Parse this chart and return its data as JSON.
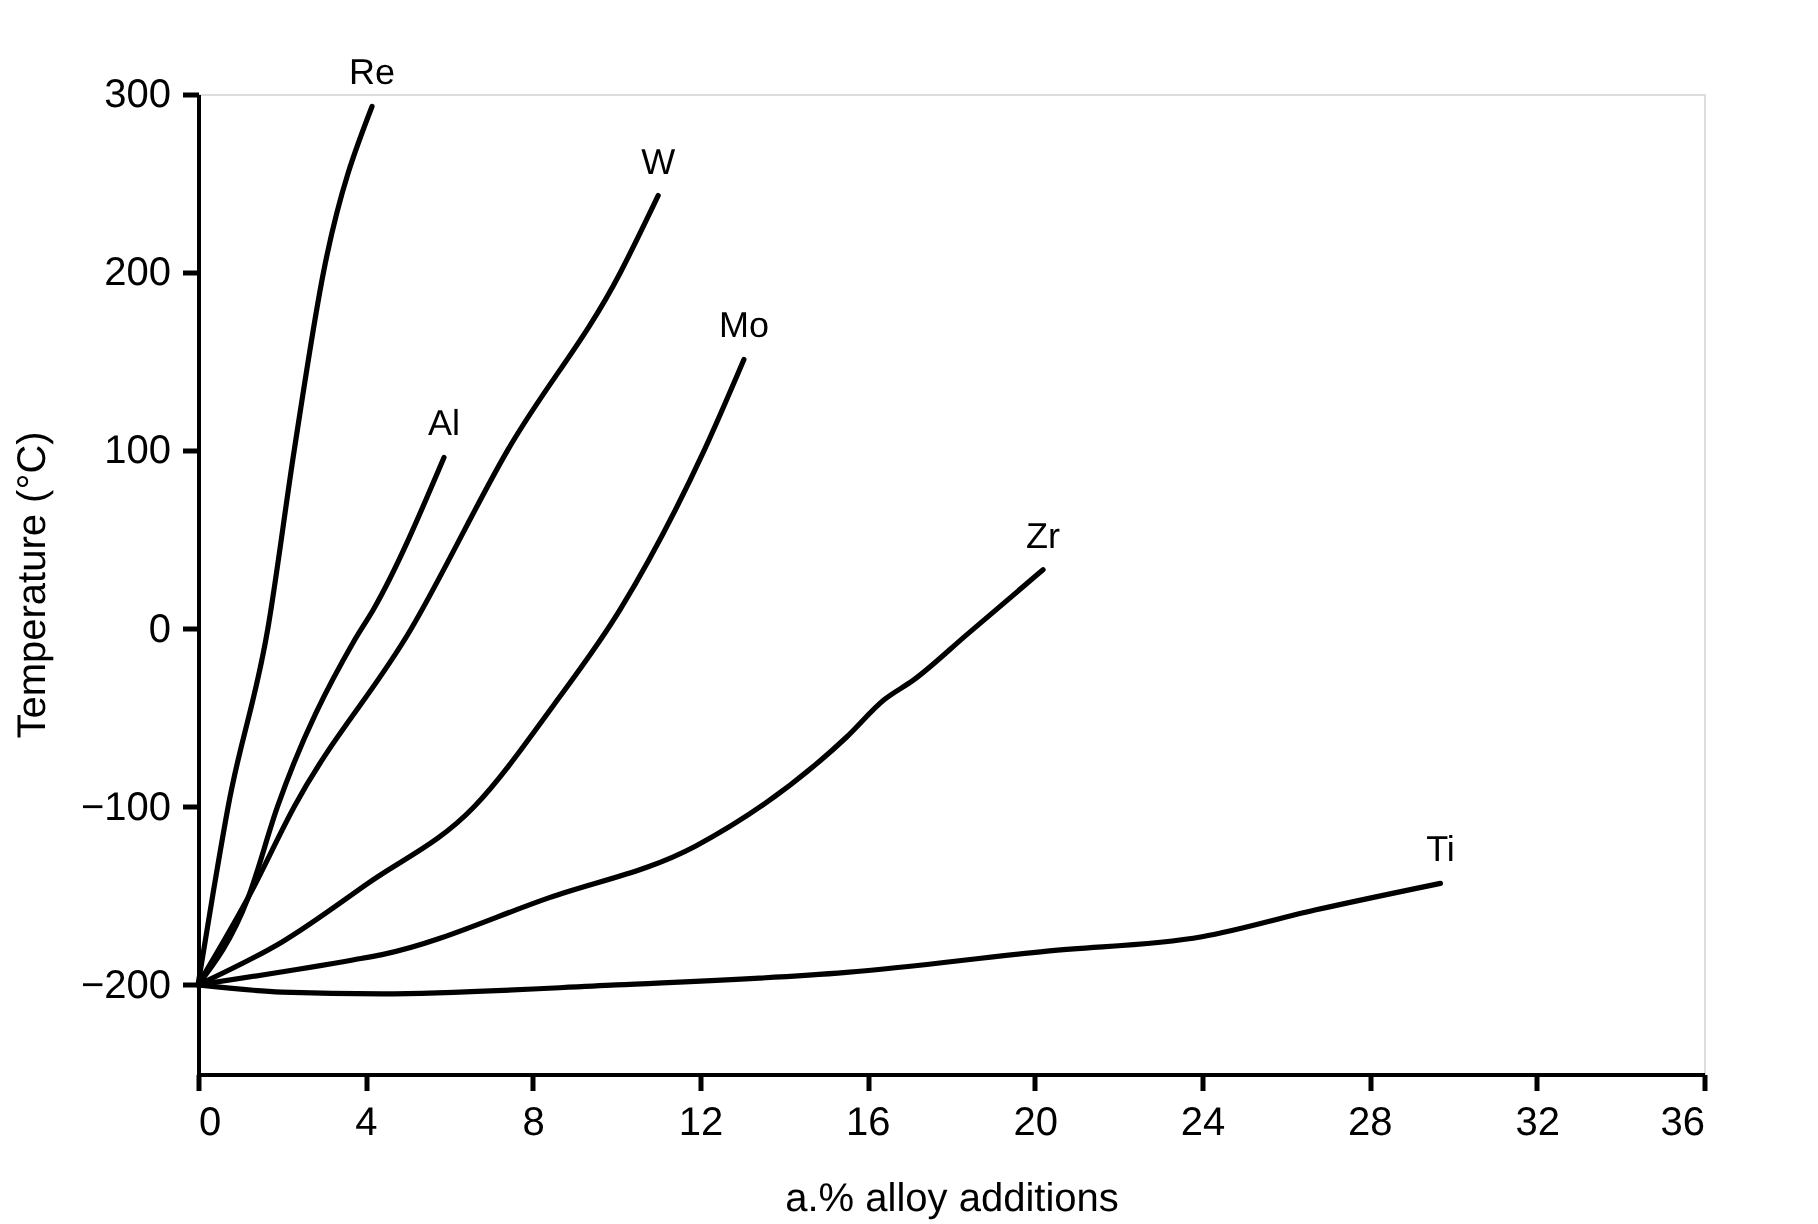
{
  "chart_data": {
    "type": "line",
    "xlabel": "a.% alloy additions",
    "ylabel": "Temperature (°C)",
    "xlim": [
      0,
      36
    ],
    "xticks": [
      0,
      4,
      8,
      12,
      16,
      20,
      24,
      28,
      32,
      36
    ],
    "ylim": [
      -250,
      300
    ],
    "yticks": [
      -200,
      -100,
      0,
      100,
      200,
      300
    ],
    "grid": false,
    "legend": false,
    "marker": "none",
    "line_style": "solid",
    "series": [
      {
        "name": "Re",
        "color": "#000000",
        "x": [
          0,
          0.35,
          0.72,
          1.67,
          2.3,
          3.0,
          4.16
        ],
        "values": [
          -200,
          -150,
          -100,
          0,
          100,
          200,
          293
        ]
      },
      {
        "name": "Al",
        "color": "#000000",
        "x": [
          0,
          1.2,
          1.9,
          3.73,
          4.2,
          5.88
        ],
        "values": [
          -200,
          -151,
          -100,
          -7,
          11,
          96
        ]
      },
      {
        "name": "W",
        "color": "#000000",
        "x": [
          0,
          1.2,
          2.3,
          5.1,
          7.4,
          10.1,
          11.0
        ],
        "values": [
          -200,
          -151,
          -100,
          0,
          100,
          200,
          243
        ]
      },
      {
        "name": "Mo",
        "color": "#000000",
        "x": [
          0,
          2.0,
          4.06,
          6.6,
          8.5,
          10.1,
          12.1,
          13.05
        ],
        "values": [
          -200,
          -176,
          -143,
          -100,
          -43,
          11,
          100,
          151
        ]
      },
      {
        "name": "Zr",
        "color": "#000000",
        "x": [
          0,
          3.7,
          4.4,
          8.4,
          11.9,
          15.5,
          16.4,
          17.1,
          18.4,
          20.2
        ],
        "values": [
          -200,
          -186,
          -183,
          -151,
          -122,
          -61,
          -40,
          -29,
          -3,
          33
        ]
      },
      {
        "name": "Ti",
        "color": "#000000",
        "x": [
          0,
          2.0,
          4.4,
          10.0,
          15.5,
          20.3,
          24.0,
          26.7,
          29.7
        ],
        "values": [
          -200,
          -204,
          -205,
          -200,
          -193,
          -181,
          -173,
          -158,
          -143
        ]
      }
    ]
  }
}
